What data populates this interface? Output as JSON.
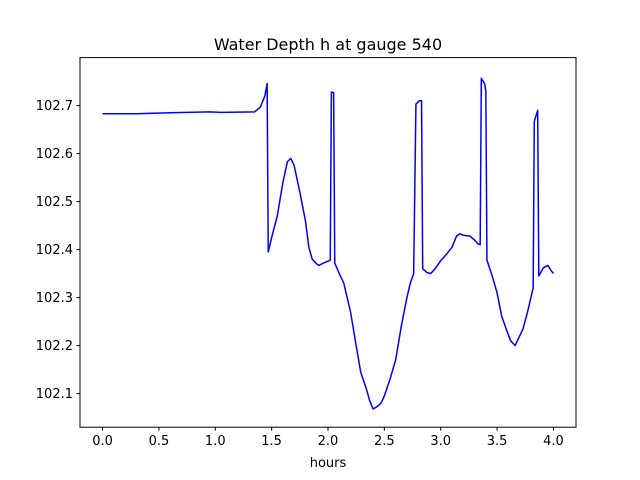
{
  "chart_data": {
    "type": "line",
    "title": "Water Depth h at gauge 540",
    "xlabel": "hours",
    "ylabel": "",
    "xlim": [
      -0.2,
      4.2
    ],
    "ylim": [
      102.03,
      102.8
    ],
    "grid": false,
    "x_ticks": [
      0.0,
      0.5,
      1.0,
      1.5,
      2.0,
      2.5,
      3.0,
      3.5,
      4.0
    ],
    "x_tick_labels": [
      "0.0",
      "0.5",
      "1.0",
      "1.5",
      "2.0",
      "2.5",
      "3.0",
      "3.5",
      "4.0"
    ],
    "y_ticks": [
      102.1,
      102.2,
      102.3,
      102.4,
      102.5,
      102.6,
      102.7
    ],
    "y_tick_labels": [
      "102.1",
      "102.2",
      "102.3",
      "102.4",
      "102.5",
      "102.6",
      "102.7"
    ],
    "series": [
      {
        "color": "#0000ff",
        "points": [
          [
            0.0,
            102.683
          ],
          [
            0.3,
            102.683
          ],
          [
            0.6,
            102.685
          ],
          [
            0.95,
            102.687
          ],
          [
            1.05,
            102.686
          ],
          [
            1.35,
            102.687
          ],
          [
            1.4,
            102.697
          ],
          [
            1.44,
            102.72
          ],
          [
            1.46,
            102.746
          ],
          [
            1.47,
            102.395
          ],
          [
            1.5,
            102.425
          ],
          [
            1.55,
            102.47
          ],
          [
            1.6,
            102.54
          ],
          [
            1.64,
            102.583
          ],
          [
            1.67,
            102.59
          ],
          [
            1.7,
            102.575
          ],
          [
            1.75,
            102.52
          ],
          [
            1.8,
            102.46
          ],
          [
            1.83,
            102.405
          ],
          [
            1.86,
            102.38
          ],
          [
            1.9,
            102.37
          ],
          [
            1.92,
            102.367
          ],
          [
            1.96,
            102.372
          ],
          [
            2.02,
            102.378
          ],
          [
            2.03,
            102.728
          ],
          [
            2.05,
            102.727
          ],
          [
            2.06,
            102.372
          ],
          [
            2.1,
            102.35
          ],
          [
            2.14,
            102.33
          ],
          [
            2.2,
            102.27
          ],
          [
            2.25,
            102.2
          ],
          [
            2.29,
            102.145
          ],
          [
            2.34,
            102.11
          ],
          [
            2.37,
            102.085
          ],
          [
            2.4,
            102.068
          ],
          [
            2.43,
            102.072
          ],
          [
            2.47,
            102.08
          ],
          [
            2.5,
            102.095
          ],
          [
            2.55,
            102.13
          ],
          [
            2.6,
            102.17
          ],
          [
            2.65,
            102.24
          ],
          [
            2.7,
            102.3
          ],
          [
            2.73,
            102.33
          ],
          [
            2.76,
            102.35
          ],
          [
            2.78,
            102.703
          ],
          [
            2.81,
            102.71
          ],
          [
            2.83,
            102.71
          ],
          [
            2.84,
            102.36
          ],
          [
            2.88,
            102.352
          ],
          [
            2.91,
            102.35
          ],
          [
            2.95,
            102.36
          ],
          [
            3.0,
            102.377
          ],
          [
            3.05,
            102.39
          ],
          [
            3.1,
            102.405
          ],
          [
            3.14,
            102.428
          ],
          [
            3.17,
            102.433
          ],
          [
            3.2,
            102.43
          ],
          [
            3.26,
            102.428
          ],
          [
            3.3,
            102.42
          ],
          [
            3.33,
            102.412
          ],
          [
            3.35,
            102.41
          ],
          [
            3.36,
            102.757
          ],
          [
            3.39,
            102.745
          ],
          [
            3.4,
            102.73
          ],
          [
            3.41,
            102.378
          ],
          [
            3.45,
            102.35
          ],
          [
            3.5,
            102.31
          ],
          [
            3.54,
            102.262
          ],
          [
            3.58,
            102.235
          ],
          [
            3.62,
            102.21
          ],
          [
            3.66,
            102.2
          ],
          [
            3.69,
            102.215
          ],
          [
            3.73,
            102.235
          ],
          [
            3.77,
            102.27
          ],
          [
            3.8,
            102.3
          ],
          [
            3.82,
            102.32
          ],
          [
            3.83,
            102.667
          ],
          [
            3.86,
            102.69
          ],
          [
            3.87,
            102.345
          ],
          [
            3.91,
            102.362
          ],
          [
            3.95,
            102.367
          ],
          [
            3.98,
            102.356
          ],
          [
            4.0,
            102.35
          ]
        ]
      }
    ]
  }
}
